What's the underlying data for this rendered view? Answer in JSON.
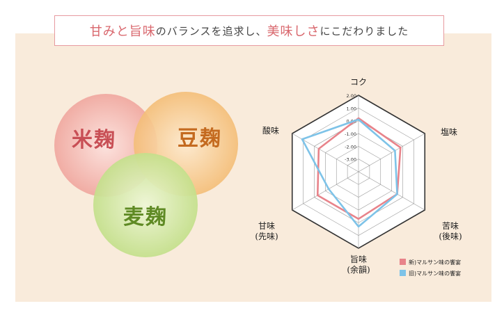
{
  "title": {
    "part1": "甘みと旨味",
    "part2": "のバランスを追求し、",
    "part3": "美味しさ",
    "part4": "にこだわりました"
  },
  "circles": {
    "rice": "米麹",
    "bean": "豆麹",
    "wheat": "麦麹"
  },
  "colors": {
    "new": "#e8838a",
    "old": "#7ec3e8",
    "title_border": "#e79a9f",
    "panel_bg": "#f9ebdb"
  },
  "chart_data": {
    "type": "radar",
    "axes": [
      {
        "label": "コク",
        "sub": ""
      },
      {
        "label": "塩味",
        "sub": ""
      },
      {
        "label": "苦味",
        "sub": "(後味)"
      },
      {
        "label": "旨味",
        "sub": "(余韻)"
      },
      {
        "label": "甘味",
        "sub": "(先味)"
      },
      {
        "label": "酸味",
        "sub": ""
      }
    ],
    "ticks": [
      2.0,
      1.0,
      0.0,
      -1.0,
      -2.0,
      -3.0
    ],
    "tick_labels": [
      "2.00",
      "1.00",
      "0.00",
      "-1.00",
      "-2.00",
      "-3.00"
    ],
    "range": [
      -4,
      2
    ],
    "series": [
      {
        "name": "新)マルサン味の饗宴",
        "values": [
          0.2,
          -0.2,
          -0.5,
          -0.3,
          -0.3,
          -0.4
        ]
      },
      {
        "name": "旧)マルサン味の饗宴",
        "values": [
          0.1,
          -0.7,
          -0.5,
          0.3,
          -1.3,
          1.1
        ]
      }
    ],
    "legend_position": "bottom-right"
  }
}
